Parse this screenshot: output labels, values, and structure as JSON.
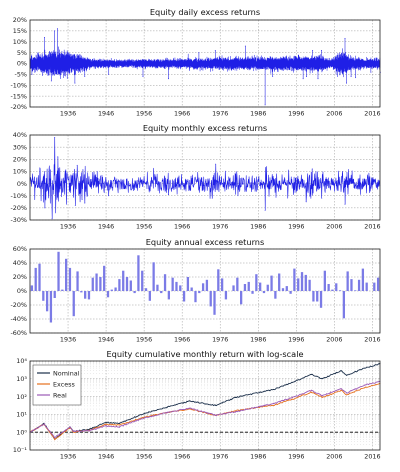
{
  "colors": {
    "daily": "#1f1fe6",
    "monthly": "#1f1fe6",
    "annual_bar": "#7b7be6",
    "nominal": "#1b2f4a",
    "excess": "#e6701d",
    "real": "#9b59b6",
    "reference_line": "#000000",
    "grid": "#9a9a9a"
  },
  "chart_data": [
    {
      "type": "line",
      "title": "Equity daily excess returns",
      "x_ticks": [
        "1936",
        "1946",
        "1956",
        "1966",
        "1976",
        "1986",
        "1996",
        "2006",
        "2016"
      ],
      "y_ticks": [
        "20%",
        "15%",
        "10%",
        "5%",
        "0%",
        "-5%",
        "-10%",
        "-15%",
        "-20%"
      ],
      "xlim": [
        1926,
        2018
      ],
      "ylim": [
        -20,
        20
      ],
      "grid": true,
      "series": [
        {
          "unit": "%",
          "x": [
            1926.5,
            1929.8,
            1931.6,
            1932.4,
            1933.2,
            1937.8,
            1940.4,
            1946.7,
            1955.7,
            1962.4,
            1970.4,
            1974.7,
            1982.6,
            1987.8,
            1989.8,
            1997.8,
            1998.7,
            2000.3,
            2001.7,
            2002.6,
            2008.8,
            2009.2,
            2010.4,
            2011.6,
            2015.6,
            2018.1
          ],
          "y": [
            -5.0,
            12.0,
            -8.0,
            15.0,
            16.0,
            -9.0,
            -6.0,
            -5.0,
            -6.0,
            -7.0,
            5.0,
            6.0,
            8.0,
            -19.0,
            -6.0,
            -7.0,
            -6.0,
            6.0,
            -7.0,
            6.0,
            11.5,
            -9.0,
            -6.0,
            -6.5,
            -4.0,
            -4.0
          ]
        }
      ]
    },
    {
      "type": "line",
      "title": "Equity monthly excess returns",
      "x_ticks": [
        "1936",
        "1946",
        "1956",
        "1966",
        "1976",
        "1986",
        "1996",
        "2006",
        "2016"
      ],
      "y_ticks": [
        "40%",
        "30%",
        "20%",
        "10%",
        "0%",
        "-10%",
        "-20%",
        "-30%"
      ],
      "xlim": [
        1926,
        2018
      ],
      "ylim": [
        -30,
        40
      ],
      "grid": true,
      "series": [
        {
          "unit": "%",
          "x": [
            1929.9,
            1931.8,
            1932.5,
            1933.3,
            1937.9,
            1938.4,
            1939.7,
            1940.4,
            1946.7,
            1962.4,
            1973.9,
            1974.8,
            1987.8,
            1998.6,
            2000.2,
            2002.7,
            2008.8,
            2009.3
          ],
          "y": [
            -20.0,
            -29.0,
            38.0,
            22.0,
            -18.0,
            15.0,
            -13.0,
            -16.0,
            -10.0,
            -9.0,
            -12.0,
            16.0,
            -22.0,
            -15.0,
            12.0,
            -12.0,
            -17.0,
            9.0
          ]
        }
      ]
    },
    {
      "type": "bar",
      "title": "Equity annual excess returns",
      "categories": [
        1926,
        1927,
        1928,
        1929,
        1930,
        1931,
        1932,
        1933,
        1934,
        1935,
        1936,
        1937,
        1938,
        1939,
        1940,
        1941,
        1942,
        1943,
        1944,
        1945,
        1946,
        1947,
        1948,
        1949,
        1950,
        1951,
        1952,
        1953,
        1954,
        1955,
        1956,
        1957,
        1958,
        1959,
        1960,
        1961,
        1962,
        1963,
        1964,
        1965,
        1966,
        1967,
        1968,
        1969,
        1970,
        1971,
        1972,
        1973,
        1974,
        1975,
        1976,
        1977,
        1978,
        1979,
        1980,
        1981,
        1982,
        1983,
        1984,
        1985,
        1986,
        1987,
        1988,
        1989,
        1990,
        1991,
        1992,
        1993,
        1994,
        1995,
        1996,
        1997,
        1998,
        1999,
        2000,
        2001,
        2002,
        2003,
        2004,
        2005,
        2006,
        2007,
        2008,
        2009,
        2010,
        2011,
        2012,
        2013,
        2014,
        2015,
        2016,
        2017
      ],
      "x_ticks": [
        "1936",
        "1946",
        "1956",
        "1966",
        "1976",
        "1986",
        "1996",
        "2006",
        "2016"
      ],
      "y_ticks": [
        "60%",
        "40%",
        "20%",
        "0%",
        "-20%",
        "-40%",
        "-60%"
      ],
      "xlim": [
        1926,
        2018
      ],
      "ylim": [
        -60,
        60
      ],
      "grid": true,
      "values": [
        8,
        33,
        39,
        -14,
        -29,
        -45,
        -10,
        56,
        2,
        46,
        33,
        -36,
        28,
        -2,
        -11,
        -12,
        19,
        25,
        20,
        36,
        -9,
        2,
        5,
        17,
        29,
        20,
        15,
        -3,
        51,
        29,
        4,
        -14,
        41,
        9,
        -3,
        24,
        -12,
        19,
        13,
        8,
        -15,
        20,
        5,
        -16,
        -3,
        11,
        16,
        -22,
        -34,
        31,
        18,
        -12,
        0,
        8,
        19,
        -19,
        10,
        13,
        -4,
        24,
        12,
        -3,
        9,
        22,
        -11,
        25,
        4,
        7,
        -4,
        32,
        18,
        27,
        23,
        16,
        -15,
        -15,
        -24,
        29,
        10,
        2,
        11,
        1,
        -39,
        28,
        17,
        1,
        16,
        32,
        12,
        0,
        12,
        19
      ]
    },
    {
      "type": "line",
      "title": "Equity cumulative monthly return with log-scale",
      "x_ticks": [
        "1936",
        "1946",
        "1956",
        "1966",
        "1976",
        "1986",
        "1996",
        "2006",
        "2016"
      ],
      "y_ticks": [
        "10⁴",
        "10³",
        "10²",
        "10¹",
        "10⁰",
        "10⁻¹"
      ],
      "xlim": [
        1926,
        2018
      ],
      "ylim": [
        -1,
        4
      ],
      "yscale": "log10",
      "grid": true,
      "reference_line_y": 0,
      "legend": {
        "position": "top-left",
        "entries": [
          "Nominal",
          "Excess",
          "Real"
        ]
      },
      "series": [
        {
          "name": "Nominal",
          "x": [
            1926,
            1929.7,
            1932.5,
            1936.5,
            1937.5,
            1941.5,
            1946,
            1949.5,
            1956,
            1962,
            1968,
            1974.8,
            1980,
            1987.7,
            1990,
            1995,
            2000,
            2002.8,
            2007.8,
            2009.2,
            2014,
            2018
          ],
          "y": [
            0.0,
            0.5,
            -0.4,
            0.3,
            0.05,
            0.15,
            0.55,
            0.5,
            1.05,
            1.4,
            1.75,
            1.5,
            1.95,
            2.3,
            2.4,
            2.8,
            3.25,
            3.0,
            3.45,
            3.2,
            3.6,
            3.85
          ]
        },
        {
          "name": "Excess",
          "x": [
            1926,
            1929.7,
            1932.5,
            1936.5,
            1937.5,
            1941.5,
            1946,
            1949.5,
            1956,
            1962,
            1968,
            1974.8,
            1980,
            1987.7,
            1990,
            1995,
            2000,
            2002.8,
            2007.8,
            2009.2,
            2014,
            2018
          ],
          "y": [
            0.0,
            0.45,
            -0.4,
            0.25,
            0.0,
            0.1,
            0.45,
            0.4,
            0.85,
            1.1,
            1.3,
            0.95,
            1.2,
            1.45,
            1.5,
            1.85,
            2.25,
            1.95,
            2.35,
            2.1,
            2.5,
            2.75
          ]
        },
        {
          "name": "Real",
          "x": [
            1926,
            1929.7,
            1932.5,
            1936.5,
            1937.5,
            1941.5,
            1946,
            1949.5,
            1956,
            1962,
            1968,
            1974.8,
            1980,
            1987.7,
            1990,
            1995,
            2000,
            2002.8,
            2007.8,
            2009.2,
            2014,
            2018
          ],
          "y": [
            0.0,
            0.45,
            -0.3,
            0.3,
            0.05,
            0.08,
            0.35,
            0.3,
            0.8,
            1.1,
            1.35,
            0.95,
            1.15,
            1.5,
            1.6,
            1.95,
            2.35,
            2.05,
            2.45,
            2.2,
            2.65,
            2.85
          ]
        }
      ]
    }
  ]
}
